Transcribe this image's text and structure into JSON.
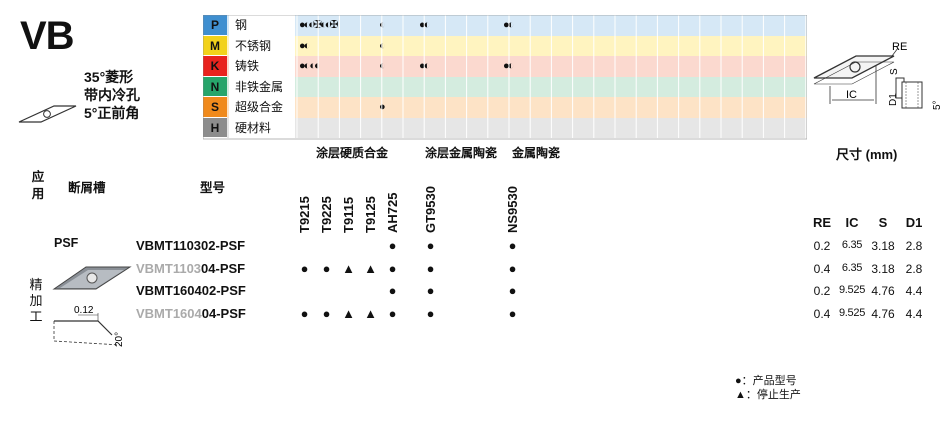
{
  "title": "VB",
  "description": [
    "35°菱形",
    "带内冷孔",
    "5°正前角"
  ],
  "materials": [
    {
      "code": "P",
      "name": "钢",
      "color": "#3f8fd0",
      "bg": "#d6e8f6",
      "symbols": [
        "●◐◐✠◐◐✠",
        "◐",
        "●◐",
        "●◐"
      ]
    },
    {
      "code": "M",
      "name": "不锈钢",
      "color": "#f2d21b",
      "bg": "#fff4c0",
      "symbols": [
        "●◐",
        "◐",
        "",
        ""
      ]
    },
    {
      "code": "K",
      "name": "铸铁",
      "color": "#e8231e",
      "bg": "#fbd9cf",
      "symbols": [
        "●◐  ◐◐",
        "◐",
        "●◐",
        "●◐"
      ]
    },
    {
      "code": "N",
      "name": "非铁金属",
      "color": "#27a56b",
      "bg": "#d4ecdf",
      "symbols": [
        "",
        "",
        "",
        ""
      ]
    },
    {
      "code": "S",
      "name": "超级合金",
      "color": "#f08a1c",
      "bg": "#fde3c6",
      "symbols": [
        "",
        "●",
        "",
        ""
      ]
    },
    {
      "code": "H",
      "name": "硬材料",
      "color": "#8d8d8d",
      "bg": "#e6e6e6",
      "symbols": [
        "",
        "",
        "",
        ""
      ]
    }
  ],
  "headers": {
    "application": "应用",
    "chipbreaker": "断屑槽",
    "model": "型号",
    "group1": "涂层硬质合金",
    "group2": "涂层金属陶瓷",
    "group3": "金属陶瓷",
    "size": "尺寸 (mm)",
    "size_cols": [
      "RE",
      "IC",
      "S",
      "D1"
    ]
  },
  "grades": [
    "T9215",
    "T9225",
    "T9115",
    "T9125",
    "AH725",
    "GT9530",
    "NS9530"
  ],
  "application": "精加工",
  "chipbreaker": "PSF",
  "chipbreaker_dims": {
    "width": "0.12",
    "angle": "20°"
  },
  "rows": [
    {
      "prefix": "VBMT110302-PSF",
      "suffix": "",
      "gray": false,
      "marks": [
        "",
        "",
        "",
        "",
        "●",
        "●",
        "●"
      ],
      "re": "0.2",
      "ic": "6.35",
      "s": "3.18",
      "d1": "2.8"
    },
    {
      "prefix": "VBMT1103",
      "suffix": "04-PSF",
      "gray": true,
      "marks": [
        "●",
        "●",
        "▲",
        "▲",
        "●",
        "●",
        "●"
      ],
      "re": "0.4",
      "ic": "6.35",
      "s": "3.18",
      "d1": "2.8"
    },
    {
      "prefix": "VBMT160402-PSF",
      "suffix": "",
      "gray": false,
      "marks": [
        "",
        "",
        "",
        "",
        "●",
        "●",
        "●"
      ],
      "re": "0.2",
      "ic": "9.525",
      "s": "4.76",
      "d1": "4.4"
    },
    {
      "prefix": "VBMT1604",
      "suffix": "04-PSF",
      "gray": true,
      "marks": [
        "●",
        "●",
        "▲",
        "▲",
        "●",
        "●",
        "●"
      ],
      "re": "0.4",
      "ic": "9.525",
      "s": "4.76",
      "d1": "4.4"
    }
  ],
  "diagram_labels": {
    "re": "RE",
    "s": "S",
    "ic": "IC",
    "d1": "D1",
    "angle": "5°"
  },
  "legend": [
    "●：产品型号",
    "▲：停止生产"
  ]
}
